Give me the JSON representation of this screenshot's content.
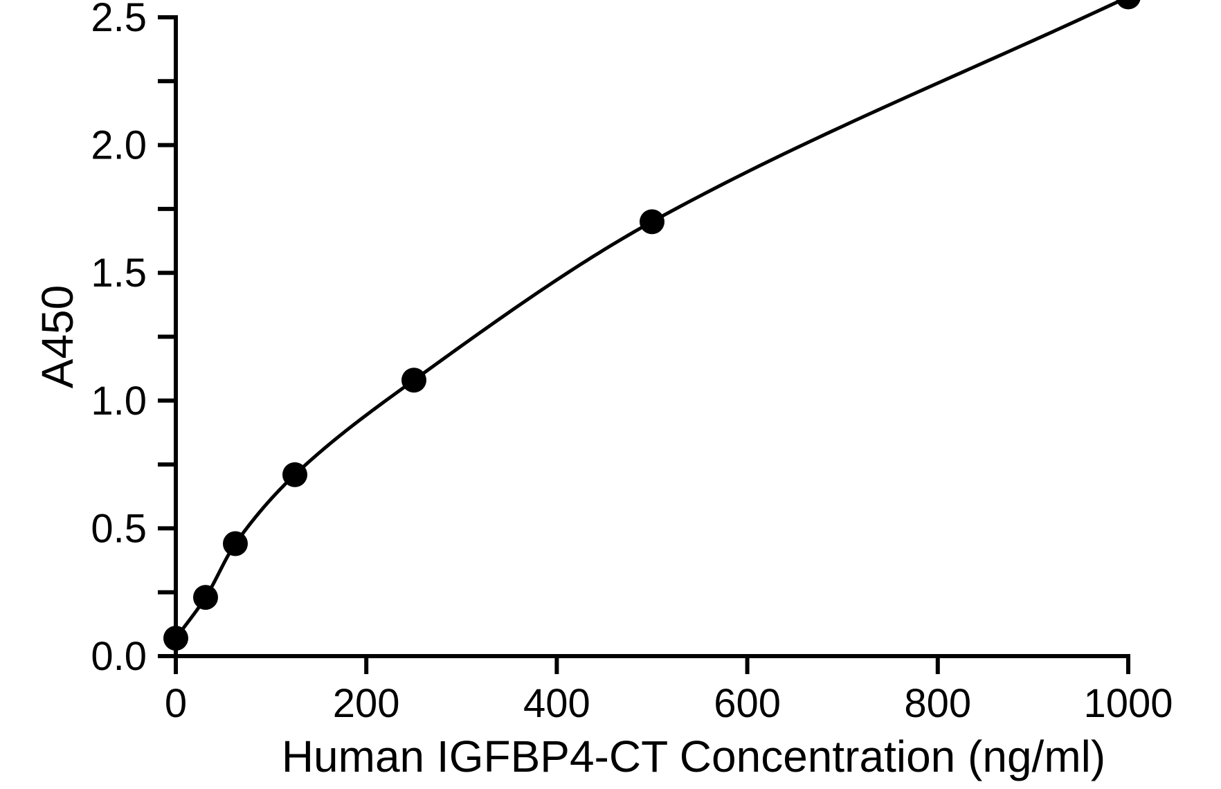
{
  "chart_data": {
    "type": "scatter",
    "xlabel": "Human IGFBP4-CT Concentration (ng/ml)",
    "ylabel": "A450",
    "xlim": [
      0,
      1000
    ],
    "ylim": [
      0,
      2.5
    ],
    "x_ticks": [
      "0",
      "200",
      "400",
      "600",
      "800",
      "1000"
    ],
    "y_ticks": [
      "0.0",
      "0.5",
      "1.0",
      "1.5",
      "2.0",
      "2.5"
    ],
    "y_tick_values": [
      0,
      0.5,
      1.0,
      1.5,
      2.0,
      2.5
    ],
    "y_minor_ticks": [
      0.25,
      0.75,
      1.25,
      1.75,
      2.25
    ],
    "x_tick_values": [
      0,
      200,
      400,
      600,
      800,
      1000
    ],
    "grid": false,
    "series": [
      {
        "x": [
          0,
          31.25,
          62.5,
          125,
          250,
          500,
          1000
        ],
        "y": [
          0.07,
          0.23,
          0.44,
          0.71,
          1.08,
          1.7,
          2.58
        ],
        "marker": "filled-circle",
        "fit": "curve"
      }
    ],
    "colors": {
      "marker": "#000000",
      "line": "#000000"
    }
  }
}
